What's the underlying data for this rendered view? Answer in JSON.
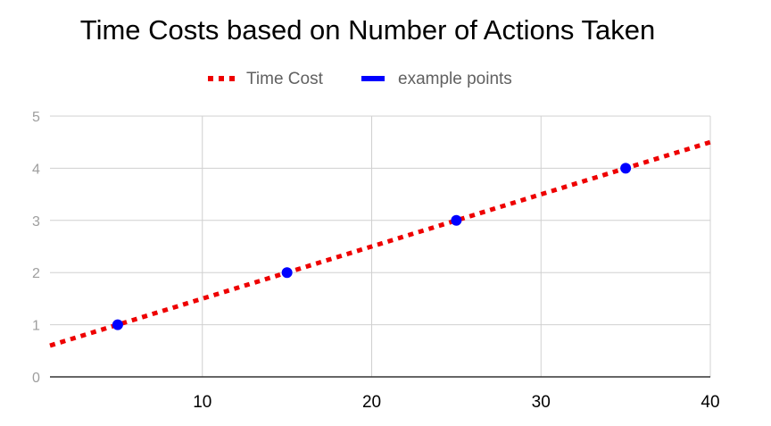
{
  "chart_data": {
    "type": "scatter",
    "title": "Time Costs based on Number of Actions Taken",
    "xlabel": "",
    "ylabel": "",
    "xlim": [
      1,
      40
    ],
    "ylim": [
      0,
      5
    ],
    "x_ticks": [
      "10",
      "20",
      "30",
      "40"
    ],
    "y_ticks": [
      "0",
      "1",
      "2",
      "3",
      "4",
      "5"
    ],
    "grid": true,
    "legend_position": "top",
    "series": [
      {
        "name": "Time Cost",
        "kind": "trendline",
        "style": "dotted",
        "color": "#ee0000",
        "x": [
          1,
          40
        ],
        "y": [
          0.6,
          4.5
        ]
      },
      {
        "name": "example points",
        "kind": "points",
        "color": "#0000ff",
        "x": [
          5,
          15,
          25,
          35
        ],
        "y": [
          1,
          2,
          3,
          4
        ]
      }
    ]
  }
}
